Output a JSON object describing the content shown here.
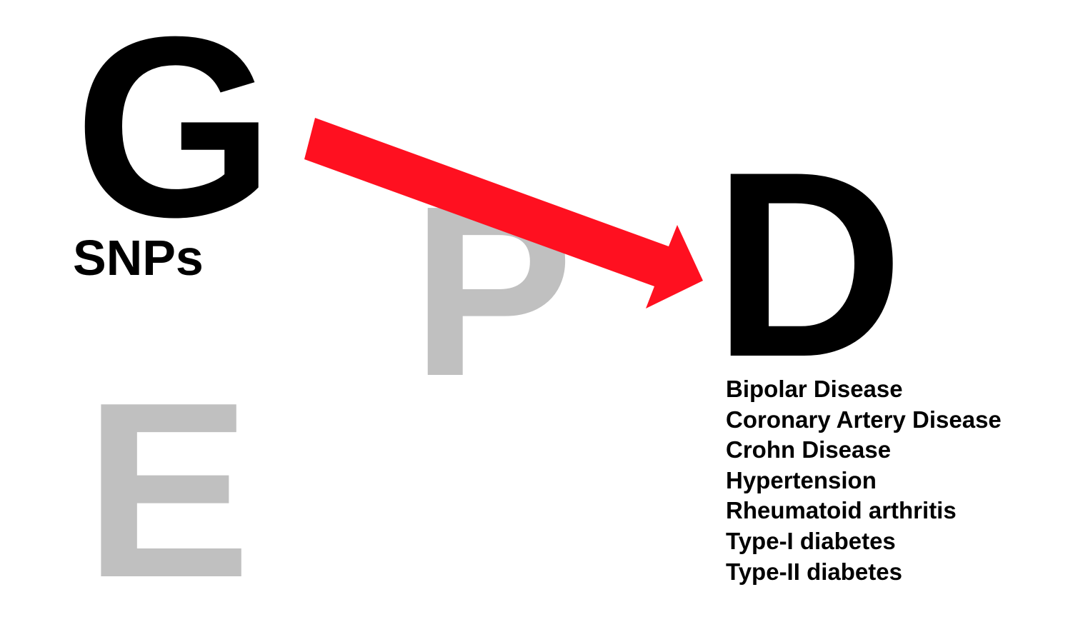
{
  "letters": {
    "g": "G",
    "p": "P",
    "e": "E",
    "d": "D"
  },
  "g_caption": "SNPs",
  "d_caption_list": [
    "Bipolar Disease",
    "Coronary Artery Disease",
    "Crohn Disease",
    "Hypertension",
    "Rheumatoid arthritis",
    "Type-I diabetes",
    "Type-II diabetes"
  ],
  "colors": {
    "primary_text": "#000000",
    "muted_text": "#c0c0c0",
    "arrow": "#ff1020",
    "background": "#ffffff"
  },
  "arrow": {
    "from": "G",
    "to": "D"
  }
}
